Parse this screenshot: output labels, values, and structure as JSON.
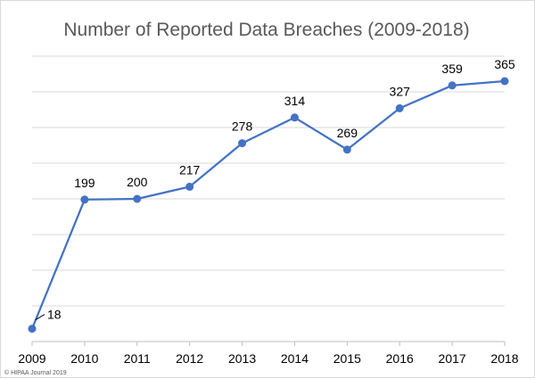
{
  "chart_data": {
    "type": "line",
    "title": "Number of Reported Data Breaches (2009-2018)",
    "x": [
      "2009",
      "2010",
      "2011",
      "2012",
      "2013",
      "2014",
      "2015",
      "2016",
      "2017",
      "2018"
    ],
    "series": [
      {
        "values": [
          18,
          199,
          200,
          217,
          278,
          314,
          269,
          327,
          359,
          365
        ]
      }
    ],
    "data_labels": [
      "18",
      "199",
      "200",
      "217",
      "278",
      "314",
      "269",
      "327",
      "359",
      "365"
    ],
    "ylim": [
      0,
      400
    ],
    "y_gridline_step": 50,
    "y_tick_labels_shown": false,
    "grid": true,
    "legend": "none",
    "line_color": "#4472c4",
    "marker_color": "#4472c4"
  },
  "credit": "© HIPAA Journal 2019"
}
